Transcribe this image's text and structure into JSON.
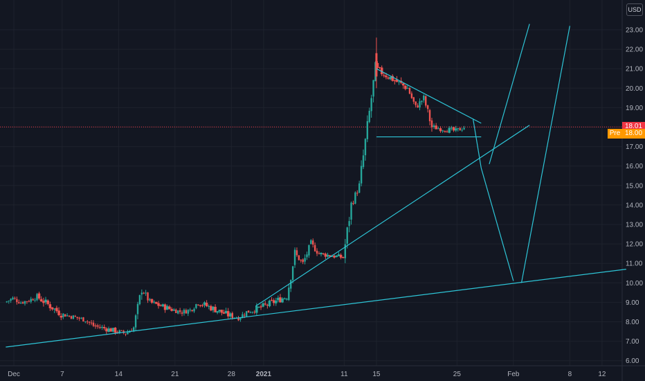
{
  "currency": "USD",
  "last_price": {
    "value": 18.01,
    "label": "18.01",
    "color": "#f23645"
  },
  "premarket": {
    "label": "Pre",
    "value": 18.0,
    "price_label": "18.00",
    "color": "#ff9800"
  },
  "colors": {
    "background": "#131722",
    "grid": "#1e222d",
    "axis_text": "#b2b5be",
    "up_candle": "#26a69a",
    "down_candle": "#ef5350",
    "drawing": "#2ec6d8"
  },
  "chart_data": {
    "type": "candlestick",
    "y_axis": {
      "min": 6.0,
      "max": 23.0,
      "ticks": [
        "6.00",
        "7.00",
        "8.00",
        "9.00",
        "10.00",
        "11.00",
        "12.00",
        "13.00",
        "14.00",
        "15.00",
        "16.00",
        "17.00",
        "18.00",
        "19.00",
        "20.00",
        "21.00",
        "22.00",
        "23.00"
      ]
    },
    "x_axis": {
      "ticks": [
        {
          "label": "Dec",
          "date": "2020-12-01",
          "bold": false
        },
        {
          "label": "7",
          "date": "2020-12-07",
          "bold": false
        },
        {
          "label": "14",
          "date": "2020-12-14",
          "bold": false
        },
        {
          "label": "21",
          "date": "2020-12-21",
          "bold": false
        },
        {
          "label": "28",
          "date": "2020-12-28",
          "bold": false
        },
        {
          "label": "2021",
          "date": "2021-01-01",
          "bold": true
        },
        {
          "label": "11",
          "date": "2021-01-11",
          "bold": false
        },
        {
          "label": "15",
          "date": "2021-01-15",
          "bold": false
        },
        {
          "label": "25",
          "date": "2021-01-25",
          "bold": false
        },
        {
          "label": "Feb",
          "date": "2021-02-01",
          "bold": false
        },
        {
          "label": "8",
          "date": "2021-02-08",
          "bold": false
        },
        {
          "label": "12",
          "date": "2021-02-12",
          "bold": false
        }
      ]
    },
    "anchors": [
      {
        "date": "2020-11-30",
        "close": 9.0
      },
      {
        "date": "2020-12-01",
        "close": 9.2
      },
      {
        "date": "2020-12-02",
        "close": 9.0
      },
      {
        "date": "2020-12-03",
        "close": 9.1
      },
      {
        "date": "2020-12-04",
        "close": 9.3
      },
      {
        "date": "2020-12-07",
        "close": 8.4
      },
      {
        "date": "2020-12-08",
        "close": 8.3
      },
      {
        "date": "2020-12-09",
        "close": 8.2
      },
      {
        "date": "2020-12-10",
        "close": 8.1
      },
      {
        "date": "2020-12-11",
        "close": 7.8
      },
      {
        "date": "2020-12-14",
        "close": 7.5
      },
      {
        "date": "2020-12-15",
        "close": 7.4
      },
      {
        "date": "2020-12-16",
        "close": 7.7
      },
      {
        "date": "2020-12-17",
        "close": 9.7
      },
      {
        "date": "2020-12-18",
        "close": 9.0
      },
      {
        "date": "2020-12-21",
        "close": 8.6
      },
      {
        "date": "2020-12-22",
        "close": 8.5
      },
      {
        "date": "2020-12-23",
        "close": 8.6
      },
      {
        "date": "2020-12-24",
        "close": 9.0
      },
      {
        "date": "2020-12-28",
        "close": 8.3
      },
      {
        "date": "2020-12-29",
        "close": 8.2
      },
      {
        "date": "2020-12-30",
        "close": 8.5
      },
      {
        "date": "2020-12-31",
        "close": 8.6
      },
      {
        "date": "2021-01-04",
        "close": 9.3
      },
      {
        "date": "2021-01-05",
        "close": 11.5
      },
      {
        "date": "2021-01-06",
        "close": 11.0
      },
      {
        "date": "2021-01-07",
        "close": 12.0
      },
      {
        "date": "2021-01-08",
        "close": 11.5
      },
      {
        "date": "2021-01-11",
        "close": 11.3
      },
      {
        "date": "2021-01-12",
        "close": 14.0
      },
      {
        "date": "2021-01-13",
        "close": 15.0
      },
      {
        "date": "2021-01-14",
        "close": 18.0
      },
      {
        "date": "2021-01-15",
        "close": 21.0
      },
      {
        "date": "2021-01-19",
        "close": 20.0
      },
      {
        "date": "2021-01-20",
        "close": 19.0
      },
      {
        "date": "2021-01-21",
        "close": 19.5
      },
      {
        "date": "2021-01-22",
        "close": 18.0
      },
      {
        "date": "2021-01-25",
        "close": 17.8
      },
      {
        "date": "2021-01-26",
        "close": 18.0
      }
    ],
    "drawings": [
      {
        "type": "line",
        "from": {
          "date": "2020-11-30",
          "price": 6.7
        },
        "to": {
          "date": "2021-02-15",
          "price": 10.7
        }
      },
      {
        "type": "line",
        "from": {
          "date": "2020-12-31",
          "price": 8.8
        },
        "to": {
          "date": "2021-02-03",
          "price": 18.1
        }
      },
      {
        "type": "line",
        "from": {
          "date": "2021-01-15",
          "price": 21.0
        },
        "to": {
          "date": "2021-01-28",
          "price": 18.2
        }
      },
      {
        "type": "line",
        "from": {
          "date": "2021-01-15",
          "price": 17.5
        },
        "to": {
          "date": "2021-01-28",
          "price": 17.5
        }
      },
      {
        "type": "line",
        "from": {
          "date": "2021-01-27",
          "price": 18.4
        },
        "to": {
          "date": "2021-01-28",
          "price": 15.9
        }
      },
      {
        "type": "line",
        "from": {
          "date": "2021-01-28",
          "price": 15.9
        },
        "to": {
          "date": "2021-02-01",
          "price": 10.1
        }
      },
      {
        "type": "line",
        "from": {
          "date": "2021-01-29",
          "price": 16.1
        },
        "to": {
          "date": "2021-02-03",
          "price": 23.3
        }
      },
      {
        "type": "line",
        "from": {
          "date": "2021-02-02",
          "price": 10.0
        },
        "to": {
          "date": "2021-02-08",
          "price": 23.2
        }
      }
    ]
  }
}
